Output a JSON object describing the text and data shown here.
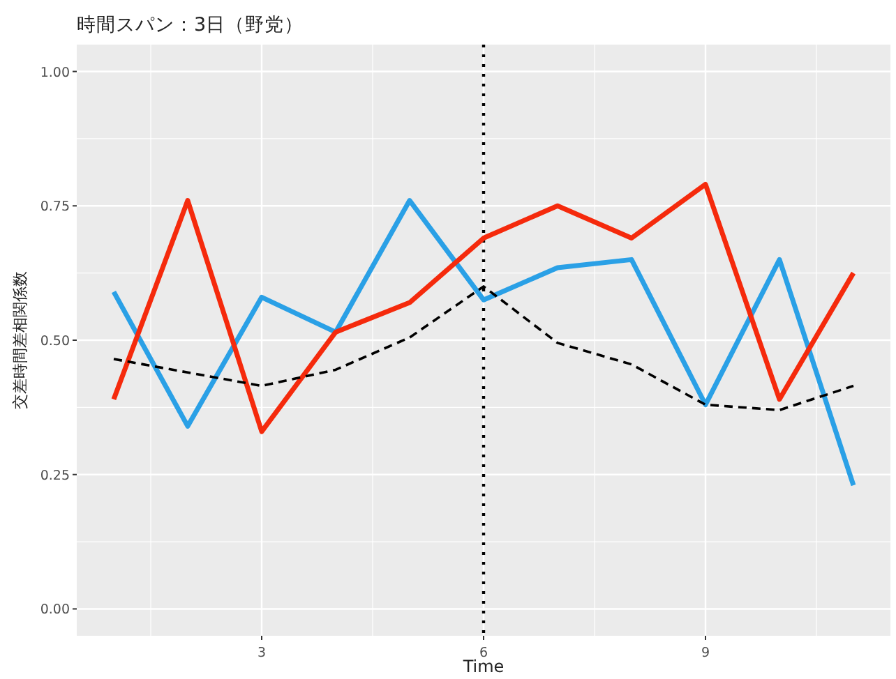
{
  "chart_data": {
    "type": "line",
    "title": "時間スパン：3日（野党）",
    "xlabel": "Time",
    "ylabel": "交差時間差相関係数",
    "x": [
      1,
      2,
      3,
      4,
      5,
      6,
      7,
      8,
      9,
      10,
      11
    ],
    "series": [
      {
        "color": "#2aa0e6",
        "values": [
          0.59,
          0.34,
          0.58,
          0.515,
          0.76,
          0.575,
          0.635,
          0.65,
          0.38,
          0.65,
          0.23
        ]
      },
      {
        "color": "#f52a0c",
        "values": [
          0.39,
          0.76,
          0.33,
          0.515,
          0.57,
          0.69,
          0.75,
          0.69,
          0.79,
          0.39,
          0.625
        ]
      },
      {
        "color": "#000000",
        "line_style": "dashed",
        "values": [
          0.465,
          0.44,
          0.415,
          0.445,
          0.505,
          0.6,
          0.495,
          0.455,
          0.38,
          0.37,
          0.415
        ]
      }
    ],
    "xlim": [
      0.5,
      11.5
    ],
    "ylim": [
      -0.05,
      1.05
    ],
    "xticks": [
      3,
      6,
      9
    ],
    "yticks": [
      {
        "value": 0,
        "label": "0.00"
      },
      {
        "value": 0.25,
        "label": "0.25"
      },
      {
        "value": 0.5,
        "label": "0.50"
      },
      {
        "value": 0.75,
        "label": "0.75"
      },
      {
        "value": 1,
        "label": "1.00"
      }
    ],
    "grid": true,
    "ref_lines": [
      {
        "axis": "x",
        "value": 6,
        "line_style": "dotted",
        "color": "#000000"
      }
    ]
  }
}
